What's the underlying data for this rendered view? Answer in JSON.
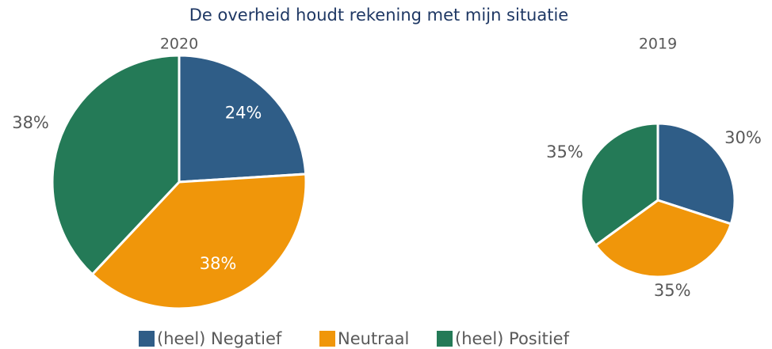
{
  "title": "De overheid houdt rekening met mijn situatie",
  "chart_data": [
    {
      "type": "pie",
      "subtitle": "2020",
      "categories": [
        "(heel) Negatief",
        "Neutraal",
        "(heel) Positief"
      ],
      "values": [
        24,
        38,
        38
      ],
      "value_labels": [
        "24%",
        "38%",
        "38%"
      ],
      "colors": [
        "#2f5d87",
        "#f0960a",
        "#247a57"
      ]
    },
    {
      "type": "pie",
      "subtitle": "2019",
      "categories": [
        "(heel) Negatief",
        "Neutraal",
        "(heel) Positief"
      ],
      "values": [
        30,
        35,
        35
      ],
      "value_labels": [
        "30%",
        "35%",
        "35%"
      ],
      "colors": [
        "#2f5d87",
        "#f0960a",
        "#247a57"
      ]
    }
  ]
}
